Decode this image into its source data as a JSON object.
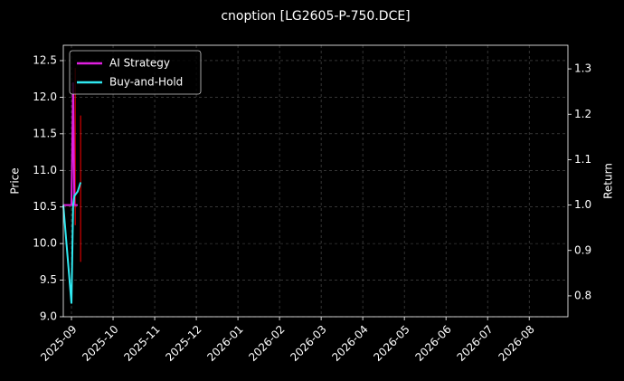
{
  "chart_data": {
    "type": "line",
    "title": "cnoption [LG2605-P-750.DCE]",
    "ylabel": "Price",
    "y2label": "Return",
    "xlim": [
      -0.196,
      11.93
    ],
    "xticks": [
      {
        "value": 0,
        "label": "2025-09"
      },
      {
        "value": 1,
        "label": "2025-10"
      },
      {
        "value": 2,
        "label": "2025-11"
      },
      {
        "value": 3,
        "label": "2025-12"
      },
      {
        "value": 4,
        "label": "2026-01"
      },
      {
        "value": 5,
        "label": "2026-02"
      },
      {
        "value": 6,
        "label": "2026-03"
      },
      {
        "value": 7,
        "label": "2026-04"
      },
      {
        "value": 8,
        "label": "2026-05"
      },
      {
        "value": 9,
        "label": "2026-06"
      },
      {
        "value": 10,
        "label": "2026-07"
      },
      {
        "value": 11,
        "label": "2026-08"
      }
    ],
    "ylim": [
      9.0,
      12.71
    ],
    "yticks": [
      {
        "value": 9,
        "label": "9.0"
      },
      9.5,
      {
        "value": 10,
        "label": "10.0"
      },
      10.5,
      {
        "value": 11,
        "label": "11.0"
      },
      11.5,
      {
        "value": 12,
        "label": "12.0"
      },
      12.5
    ],
    "y2lim": [
      0.754,
      1.352
    ],
    "y2ticks": [
      0.8,
      0.9,
      {
        "value": 1,
        "label": "1.0"
      },
      1.1,
      1.2,
      1.3
    ],
    "grid": true,
    "legend": "upper left",
    "x": [
      -0.196,
      0.0,
      0.04,
      0.07,
      0.15,
      0.22
    ],
    "series": [
      {
        "name": "AI Strategy",
        "color": "#e020e0",
        "axis": "y2",
        "values": [
          1.0,
          1.0,
          1.27,
          1.0,
          1.0,
          null
        ]
      },
      {
        "name": "Buy-and-Hold",
        "color": "#30e8f0",
        "axis": "y2",
        "values": [
          1.0,
          0.783,
          1.0,
          1.02,
          1.03,
          1.05
        ]
      }
    ],
    "candles": {
      "color": "#ff0000",
      "x": [
        0.09,
        0.22
      ],
      "high": [
        12.4,
        11.75
      ],
      "low": [
        10.25,
        9.75
      ]
    }
  }
}
